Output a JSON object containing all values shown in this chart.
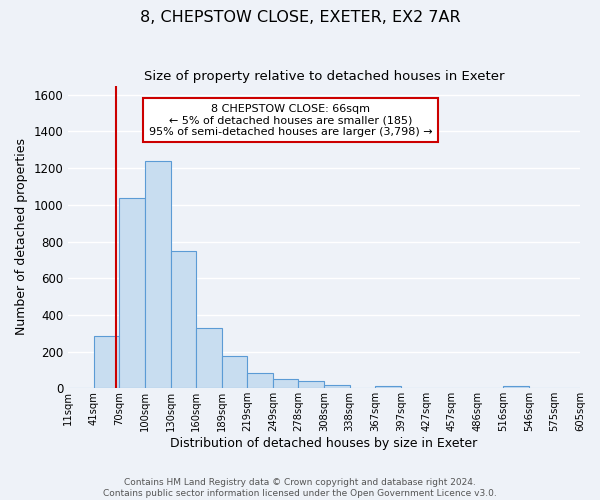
{
  "title": "8, CHEPSTOW CLOSE, EXETER, EX2 7AR",
  "subtitle": "Size of property relative to detached houses in Exeter",
  "xlabel": "Distribution of detached houses by size in Exeter",
  "ylabel": "Number of detached properties",
  "bin_labels": [
    "11sqm",
    "41sqm",
    "70sqm",
    "100sqm",
    "130sqm",
    "160sqm",
    "189sqm",
    "219sqm",
    "249sqm",
    "278sqm",
    "308sqm",
    "338sqm",
    "367sqm",
    "397sqm",
    "427sqm",
    "457sqm",
    "486sqm",
    "516sqm",
    "546sqm",
    "575sqm",
    "605sqm"
  ],
  "bar_values": [
    0,
    285,
    1035,
    1240,
    750,
    330,
    175,
    85,
    50,
    38,
    18,
    0,
    10,
    0,
    0,
    0,
    0,
    10,
    0,
    0,
    0
  ],
  "bar_color": "#c8ddf0",
  "bar_edge_color": "#5b9bd5",
  "property_line_color": "#cc0000",
  "annotation_title": "8 CHEPSTOW CLOSE: 66sqm",
  "annotation_line1": "← 5% of detached houses are smaller (185)",
  "annotation_line2": "95% of semi-detached houses are larger (3,798) →",
  "annotation_box_color": "#cc0000",
  "ylim": [
    0,
    1650
  ],
  "yticks": [
    0,
    200,
    400,
    600,
    800,
    1000,
    1200,
    1400,
    1600
  ],
  "footer1": "Contains HM Land Registry data © Crown copyright and database right 2024.",
  "footer2": "Contains public sector information licensed under the Open Government Licence v3.0.",
  "background_color": "#eef2f8",
  "plot_bg_color": "#eef2f8",
  "grid_color": "#ffffff"
}
